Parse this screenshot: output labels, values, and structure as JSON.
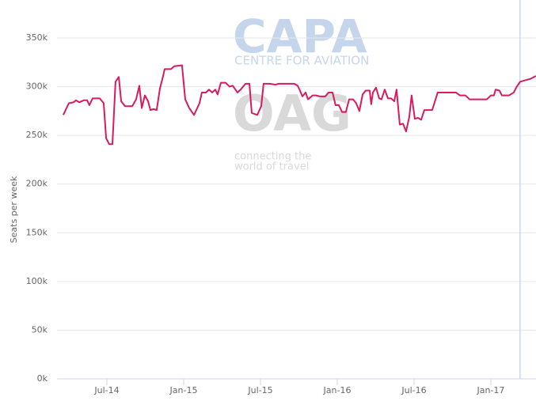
{
  "chart_data": {
    "type": "line",
    "y_axis_label": "Seats per week",
    "watermarks": [
      "CAPA",
      "CENTRE FOR AVIATION",
      "OAG",
      "connecting the",
      "world of travel"
    ],
    "xlim": [
      2014.175,
      2017.294
    ],
    "xticks": [
      {
        "value": 2014.5,
        "label": "Jul-14"
      },
      {
        "value": 2015.0,
        "label": "Jan-15"
      },
      {
        "value": 2015.5,
        "label": "Jul-15"
      },
      {
        "value": 2016.0,
        "label": "Jan-16"
      },
      {
        "value": 2016.5,
        "label": "Jul-16"
      },
      {
        "value": 2017.0,
        "label": "Jan-17"
      }
    ],
    "ylim": [
      0,
      350
    ],
    "yticks": [
      {
        "value": 0,
        "label": "0k"
      },
      {
        "value": 50,
        "label": "50k"
      },
      {
        "value": 100,
        "label": "100k"
      },
      {
        "value": 150,
        "label": "150k"
      },
      {
        "value": 200,
        "label": "200k"
      },
      {
        "value": 250,
        "label": "250k"
      },
      {
        "value": 300,
        "label": "300k"
      },
      {
        "value": 350,
        "label": "350k"
      }
    ],
    "grid": true,
    "plot_line_x": 2017.19,
    "color": "#d81b60",
    "x": [
      2014.216,
      2014.252,
      2014.283,
      2014.299,
      2014.319,
      2014.35,
      2014.371,
      2014.386,
      2014.407,
      2014.453,
      2014.479,
      2014.495,
      2014.515,
      2014.536,
      2014.556,
      2014.577,
      2014.593,
      2014.618,
      2014.665,
      2014.69,
      2014.711,
      2014.727,
      2014.747,
      2014.768,
      2014.783,
      2014.804,
      2014.824,
      2014.845,
      2014.866,
      2014.876,
      2014.917,
      2014.938,
      2014.989,
      2015.01,
      2015.036,
      2015.067,
      2015.103,
      2015.118,
      2015.144,
      2015.165,
      2015.185,
      2015.206,
      2015.221,
      2015.242,
      2015.273,
      2015.299,
      2015.319,
      2015.35,
      2015.371,
      2015.402,
      2015.428,
      2015.443,
      2015.479,
      2015.505,
      2015.52,
      2015.562,
      2015.598,
      2015.618,
      2015.721,
      2015.742,
      2015.757,
      2015.773,
      2015.794,
      2015.809,
      2015.84,
      2015.861,
      2015.886,
      2015.922,
      2015.943,
      2015.969,
      2015.989,
      2016.01,
      2016.031,
      2016.056,
      2016.077,
      2016.103,
      2016.123,
      2016.144,
      2016.165,
      2016.185,
      2016.211,
      2016.221,
      2016.232,
      2016.252,
      2016.273,
      2016.288,
      2016.309,
      2016.33,
      2016.35,
      2016.371,
      2016.386,
      2016.407,
      2016.428,
      2016.448,
      2016.469,
      2016.484,
      2016.505,
      2016.526,
      2016.546,
      2016.567,
      2016.618,
      2016.654,
      2016.773,
      2016.799,
      2016.835,
      2016.861,
      2016.974,
      2017.0,
      2017.02,
      2017.031,
      2017.056,
      2017.072,
      2017.118,
      2017.149,
      2017.165,
      2017.19,
      2017.211,
      2017.257,
      2017.294
    ],
    "values": [
      271,
      283,
      284,
      286,
      284,
      286,
      286,
      281,
      288,
      288,
      283,
      247,
      241,
      241,
      305,
      310,
      285,
      280,
      280,
      287,
      301,
      278,
      291,
      285,
      276,
      277,
      276,
      298,
      311,
      318,
      318,
      321,
      322,
      287,
      278,
      271,
      283,
      294,
      294,
      297,
      294,
      297,
      292,
      304,
      304,
      300,
      301,
      294,
      297,
      303,
      303,
      273,
      271,
      280,
      303,
      303,
      302,
      303,
      303,
      301,
      296,
      290,
      294,
      287,
      291,
      291,
      290,
      290,
      294,
      294,
      281,
      281,
      274,
      274,
      287,
      287,
      283,
      275,
      292,
      296,
      296,
      282,
      294,
      299,
      288,
      287,
      297,
      288,
      288,
      285,
      297,
      261,
      262,
      254,
      269,
      291,
      267,
      268,
      266,
      276,
      276,
      294,
      294,
      291,
      291,
      287,
      287,
      291,
      291,
      297,
      296,
      291,
      291,
      294,
      299,
      305,
      306,
      308,
      311
    ]
  }
}
